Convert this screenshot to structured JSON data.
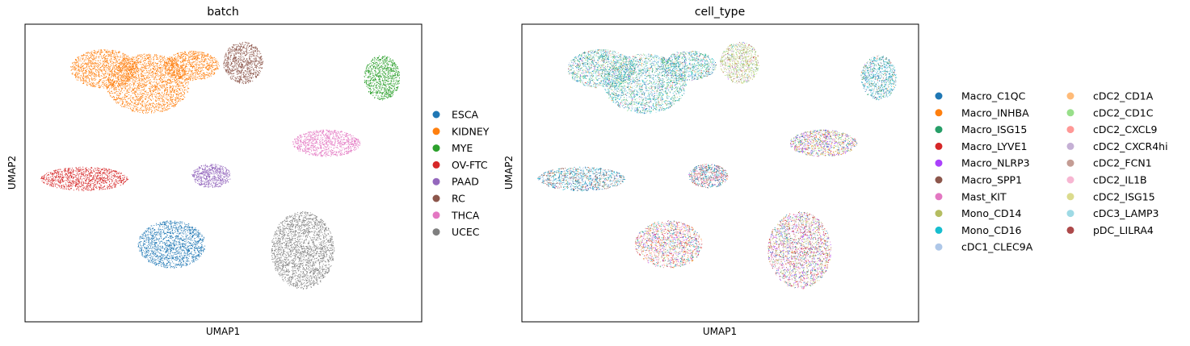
{
  "chart_data": [
    {
      "type": "scatter",
      "title": "batch",
      "xlabel": "UMAP1",
      "ylabel": "UMAP2",
      "grid": false,
      "legend_position": "right",
      "series": [
        {
          "name": "ESCA",
          "color": "#1f77b4"
        },
        {
          "name": "KIDNEY",
          "color": "#ff7f0e"
        },
        {
          "name": "MYE",
          "color": "#2ca02c"
        },
        {
          "name": "OV-FTC",
          "color": "#d62728"
        },
        {
          "name": "PAAD",
          "color": "#9467bd"
        },
        {
          "name": "RC",
          "color": "#8c564b"
        },
        {
          "name": "THCA",
          "color": "#e377c2"
        },
        {
          "name": "UCEC",
          "color": "#7f7f7f"
        }
      ],
      "clusters": [
        {
          "group": "ESCA",
          "cx": 0.37,
          "cy": 0.26,
          "rx": 0.085,
          "ry": 0.08
        },
        {
          "group": "KIDNEY",
          "cx": 0.31,
          "cy": 0.8,
          "rx": 0.105,
          "ry": 0.1
        },
        {
          "group": "KIDNEY",
          "cx": 0.2,
          "cy": 0.85,
          "rx": 0.085,
          "ry": 0.065
        },
        {
          "group": "KIDNEY",
          "cx": 0.42,
          "cy": 0.86,
          "rx": 0.07,
          "ry": 0.05
        },
        {
          "group": "RC",
          "cx": 0.55,
          "cy": 0.87,
          "rx": 0.05,
          "ry": 0.07
        },
        {
          "group": "MYE",
          "cx": 0.9,
          "cy": 0.82,
          "rx": 0.045,
          "ry": 0.075
        },
        {
          "group": "OV-FTC",
          "cx": 0.15,
          "cy": 0.48,
          "rx": 0.11,
          "ry": 0.04
        },
        {
          "group": "PAAD",
          "cx": 0.47,
          "cy": 0.49,
          "rx": 0.05,
          "ry": 0.04
        },
        {
          "group": "THCA",
          "cx": 0.76,
          "cy": 0.6,
          "rx": 0.085,
          "ry": 0.045
        },
        {
          "group": "UCEC",
          "cx": 0.7,
          "cy": 0.24,
          "rx": 0.08,
          "ry": 0.13
        }
      ]
    },
    {
      "type": "scatter",
      "title": "cell_type",
      "xlabel": "UMAP1",
      "ylabel": "UMAP2",
      "grid": false,
      "legend_position": "right",
      "legend_columns": 2,
      "series": [
        {
          "name": "Macro_C1QC",
          "color": "#1f77b4"
        },
        {
          "name": "Macro_INHBA",
          "color": "#ff7f0e"
        },
        {
          "name": "Macro_ISG15",
          "color": "#279e68"
        },
        {
          "name": "Macro_LYVE1",
          "color": "#d62728"
        },
        {
          "name": "Macro_NLRP3",
          "color": "#aa40fc"
        },
        {
          "name": "Macro_SPP1",
          "color": "#8c564b"
        },
        {
          "name": "Mast_KIT",
          "color": "#e377c2"
        },
        {
          "name": "Mono_CD14",
          "color": "#b5bd61"
        },
        {
          "name": "Mono_CD16",
          "color": "#17becf"
        },
        {
          "name": "cDC1_CLEC9A",
          "color": "#aec7e8"
        },
        {
          "name": "cDC2_CD1A",
          "color": "#ffbb78"
        },
        {
          "name": "cDC2_CD1C",
          "color": "#98df8a"
        },
        {
          "name": "cDC2_CXCL9",
          "color": "#ff9896"
        },
        {
          "name": "cDC2_CXCR4hi",
          "color": "#c5b0d5"
        },
        {
          "name": "cDC2_FCN1",
          "color": "#c49c94"
        },
        {
          "name": "cDC2_IL1B",
          "color": "#f7b6d2"
        },
        {
          "name": "cDC2_ISG15",
          "color": "#dbdb8d"
        },
        {
          "name": "cDC3_LAMP3",
          "color": "#9edae5"
        },
        {
          "name": "pDC_LILRA4",
          "color": "#ad494a"
        }
      ]
    }
  ]
}
